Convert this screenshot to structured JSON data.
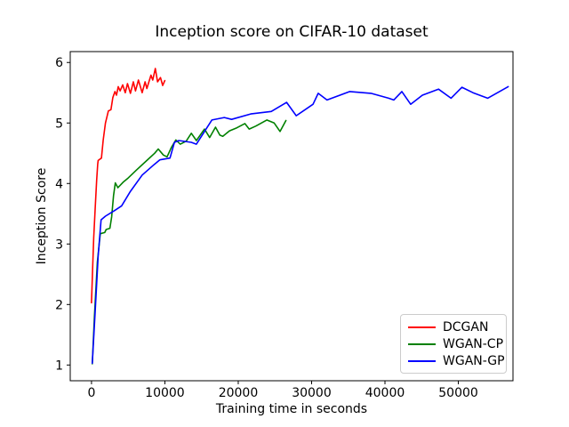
{
  "chart_data": {
    "type": "line",
    "title": "Inception score on CIFAR-10 dataset",
    "xlabel": "Training time in seconds",
    "ylabel": "Inception Score",
    "xlim": [
      -2900,
      57450
    ],
    "ylim": [
      0.74,
      6.18
    ],
    "xticks": [
      0,
      10000,
      20000,
      30000,
      40000,
      50000
    ],
    "yticks": [
      1,
      2,
      3,
      4,
      5,
      6
    ],
    "grid": false,
    "legend_position": "lower right",
    "background_color": "#ffffff",
    "axis_color": "#000000",
    "series": [
      {
        "name": "DCGAN",
        "color": "#ff0000",
        "points": [
          [
            0,
            2.03
          ],
          [
            150,
            2.6
          ],
          [
            300,
            3.1
          ],
          [
            500,
            3.6
          ],
          [
            700,
            4.05
          ],
          [
            850,
            4.32
          ],
          [
            900,
            4.38
          ],
          [
            1350,
            4.42
          ],
          [
            1600,
            4.72
          ],
          [
            1900,
            5.0
          ],
          [
            2300,
            5.2
          ],
          [
            2650,
            5.22
          ],
          [
            2900,
            5.42
          ],
          [
            3200,
            5.52
          ],
          [
            3400,
            5.46
          ],
          [
            3650,
            5.6
          ],
          [
            3900,
            5.53
          ],
          [
            4250,
            5.63
          ],
          [
            4600,
            5.5
          ],
          [
            4900,
            5.65
          ],
          [
            5300,
            5.49
          ],
          [
            5700,
            5.68
          ],
          [
            6000,
            5.53
          ],
          [
            6400,
            5.71
          ],
          [
            6900,
            5.5
          ],
          [
            7300,
            5.68
          ],
          [
            7550,
            5.57
          ],
          [
            8100,
            5.79
          ],
          [
            8350,
            5.71
          ],
          [
            8700,
            5.9
          ],
          [
            9000,
            5.68
          ],
          [
            9400,
            5.75
          ],
          [
            9700,
            5.62
          ],
          [
            10000,
            5.7
          ]
        ]
      },
      {
        "name": "WGAN-CP",
        "color": "#008000",
        "points": [
          [
            100,
            1.02
          ],
          [
            400,
            1.8
          ],
          [
            800,
            2.7
          ],
          [
            1200,
            3.17
          ],
          [
            1800,
            3.19
          ],
          [
            2000,
            3.24
          ],
          [
            2500,
            3.26
          ],
          [
            2750,
            3.45
          ],
          [
            3000,
            3.8
          ],
          [
            3250,
            4.01
          ],
          [
            3600,
            3.93
          ],
          [
            4300,
            4.02
          ],
          [
            4900,
            4.08
          ],
          [
            6100,
            4.22
          ],
          [
            7700,
            4.4
          ],
          [
            8600,
            4.5
          ],
          [
            9100,
            4.57
          ],
          [
            9800,
            4.47
          ],
          [
            10300,
            4.44
          ],
          [
            10900,
            4.6
          ],
          [
            11500,
            4.72
          ],
          [
            12100,
            4.65
          ],
          [
            12900,
            4.7
          ],
          [
            13600,
            4.83
          ],
          [
            14300,
            4.71
          ],
          [
            15400,
            4.9
          ],
          [
            16100,
            4.76
          ],
          [
            16900,
            4.93
          ],
          [
            17500,
            4.8
          ],
          [
            17900,
            4.78
          ],
          [
            18800,
            4.87
          ],
          [
            19800,
            4.92
          ],
          [
            20900,
            4.99
          ],
          [
            21500,
            4.9
          ],
          [
            22400,
            4.95
          ],
          [
            23900,
            5.05
          ],
          [
            24900,
            5.0
          ],
          [
            25700,
            4.86
          ],
          [
            26500,
            5.04
          ]
        ]
      },
      {
        "name": "WGAN-GP",
        "color": "#0000ff",
        "points": [
          [
            100,
            1.03
          ],
          [
            500,
            1.9
          ],
          [
            900,
            2.8
          ],
          [
            1300,
            3.4
          ],
          [
            1900,
            3.46
          ],
          [
            3100,
            3.55
          ],
          [
            4100,
            3.63
          ],
          [
            5300,
            3.87
          ],
          [
            6900,
            4.14
          ],
          [
            8500,
            4.31
          ],
          [
            9300,
            4.39
          ],
          [
            10700,
            4.42
          ],
          [
            11300,
            4.68
          ],
          [
            11900,
            4.71
          ],
          [
            13600,
            4.68
          ],
          [
            14300,
            4.65
          ],
          [
            16400,
            5.05
          ],
          [
            18100,
            5.09
          ],
          [
            19100,
            5.06
          ],
          [
            21700,
            5.15
          ],
          [
            24500,
            5.19
          ],
          [
            26600,
            5.34
          ],
          [
            27900,
            5.12
          ],
          [
            30200,
            5.31
          ],
          [
            30900,
            5.49
          ],
          [
            32100,
            5.38
          ],
          [
            35200,
            5.52
          ],
          [
            38100,
            5.49
          ],
          [
            40500,
            5.41
          ],
          [
            41200,
            5.38
          ],
          [
            42300,
            5.52
          ],
          [
            43500,
            5.31
          ],
          [
            45100,
            5.46
          ],
          [
            47300,
            5.56
          ],
          [
            49000,
            5.41
          ],
          [
            50500,
            5.59
          ],
          [
            52000,
            5.5
          ],
          [
            54000,
            5.41
          ],
          [
            56800,
            5.6
          ]
        ]
      }
    ]
  }
}
